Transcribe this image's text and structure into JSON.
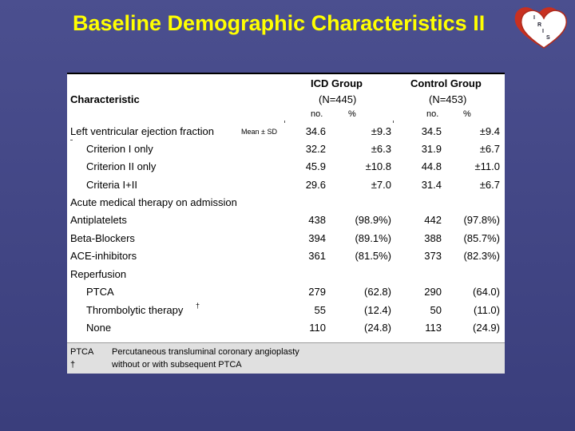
{
  "slide": {
    "title": "Baseline Demographic Characteristics II"
  },
  "logo": {
    "letters": [
      "I",
      "R",
      "I",
      "S"
    ]
  },
  "table": {
    "header": {
      "characteristic": "Characteristic",
      "icd_group": "ICD Group",
      "icd_n": "(N=445)",
      "control_group": "Control Group",
      "control_n": "(N=453)",
      "no_label": "no.",
      "pct_label": "%"
    },
    "rows": [
      {
        "label": "Left ventricular ejection fraction",
        "note": "Mean ± SD",
        "icd_no": "34.6",
        "icd_pct": "±9.3",
        "ctl_no": "34.5",
        "ctl_pct": "±9.4"
      },
      {
        "label": "Criterion I only",
        "icd_no": "32.2",
        "icd_pct": "±6.3",
        "ctl_no": "31.9",
        "ctl_pct": "±6.7"
      },
      {
        "label": "Criterion II only",
        "icd_no": "45.9",
        "icd_pct": "±10.8",
        "ctl_no": "44.8",
        "ctl_pct": "±11.0"
      },
      {
        "label": "Criteria I+II",
        "icd_no": "29.6",
        "icd_pct": "±7.0",
        "ctl_no": "31.4",
        "ctl_pct": "±6.7"
      },
      {
        "label": "Acute medical therapy on admission",
        "icd_no": "",
        "icd_pct": "",
        "ctl_no": "",
        "ctl_pct": ""
      },
      {
        "label": "Antiplatelets",
        "icd_no": "438",
        "icd_pct": "(98.9%)",
        "ctl_no": "442",
        "ctl_pct": "(97.8%)"
      },
      {
        "label": "Beta-Blockers",
        "icd_no": "394",
        "icd_pct": "(89.1%)",
        "ctl_no": "388",
        "ctl_pct": "(85.7%)"
      },
      {
        "label": "ACE-inhibitors",
        "icd_no": "361",
        "icd_pct": "(81.5%)",
        "ctl_no": "373",
        "ctl_pct": "(82.3%)"
      },
      {
        "label": "Reperfusion",
        "icd_no": "",
        "icd_pct": "",
        "ctl_no": "",
        "ctl_pct": ""
      },
      {
        "label": "PTCA",
        "icd_no": "279",
        "icd_pct": "(62.8)",
        "ctl_no": "290",
        "ctl_pct": "(64.0)"
      },
      {
        "label": "Thrombolytic therapy",
        "sup": "†",
        "icd_no": "55",
        "icd_pct": "(12.4)",
        "ctl_no": "50",
        "ctl_pct": "(11.0)"
      },
      {
        "label": "None",
        "icd_no": "110",
        "icd_pct": "(24.8)",
        "ctl_no": "113",
        "ctl_pct": "(24.9)"
      }
    ],
    "footnotes": [
      {
        "key": "PTCA",
        "text": "Percutaneous transluminal coronary angioplasty"
      },
      {
        "key": "†",
        "text": "without or with subsequent PTCA"
      }
    ]
  },
  "colors": {
    "background": "#44488a",
    "title": "#ffff00",
    "footer_bg": "#e0e0e0"
  }
}
